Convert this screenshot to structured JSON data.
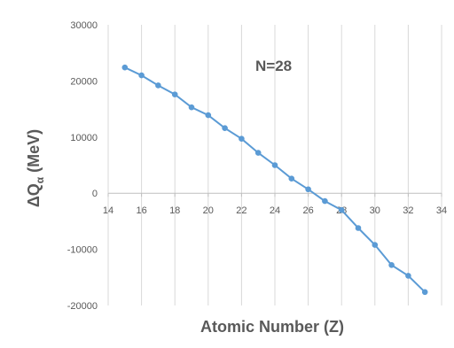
{
  "chart_data": {
    "type": "line",
    "title": "",
    "annotation": "N=28",
    "xlabel": "Atomic Number (Z)",
    "ylabel_main": "ΔQ",
    "ylabel_sub": "α",
    "ylabel_unit": " (MeV)",
    "xlim": [
      14,
      34
    ],
    "ylim": [
      -20000,
      30000
    ],
    "x_ticks": [
      14,
      16,
      18,
      20,
      22,
      24,
      26,
      28,
      30,
      32,
      34
    ],
    "y_ticks": [
      30000,
      20000,
      10000,
      0,
      -10000,
      -20000
    ],
    "grid": "vertical",
    "legend": "none",
    "series_color": "#5b9bd5",
    "series": [
      {
        "x": [
          15,
          16,
          17,
          18,
          19,
          20,
          21,
          22,
          23,
          24,
          25,
          26,
          27,
          28,
          29,
          30,
          31,
          32,
          33
        ],
        "values": [
          22400,
          21000,
          19200,
          17600,
          15300,
          13900,
          11600,
          9700,
          7200,
          5000,
          2600,
          700,
          -1400,
          -3000,
          -6200,
          -9200,
          -12800,
          -14700,
          -17600
        ]
      }
    ]
  }
}
